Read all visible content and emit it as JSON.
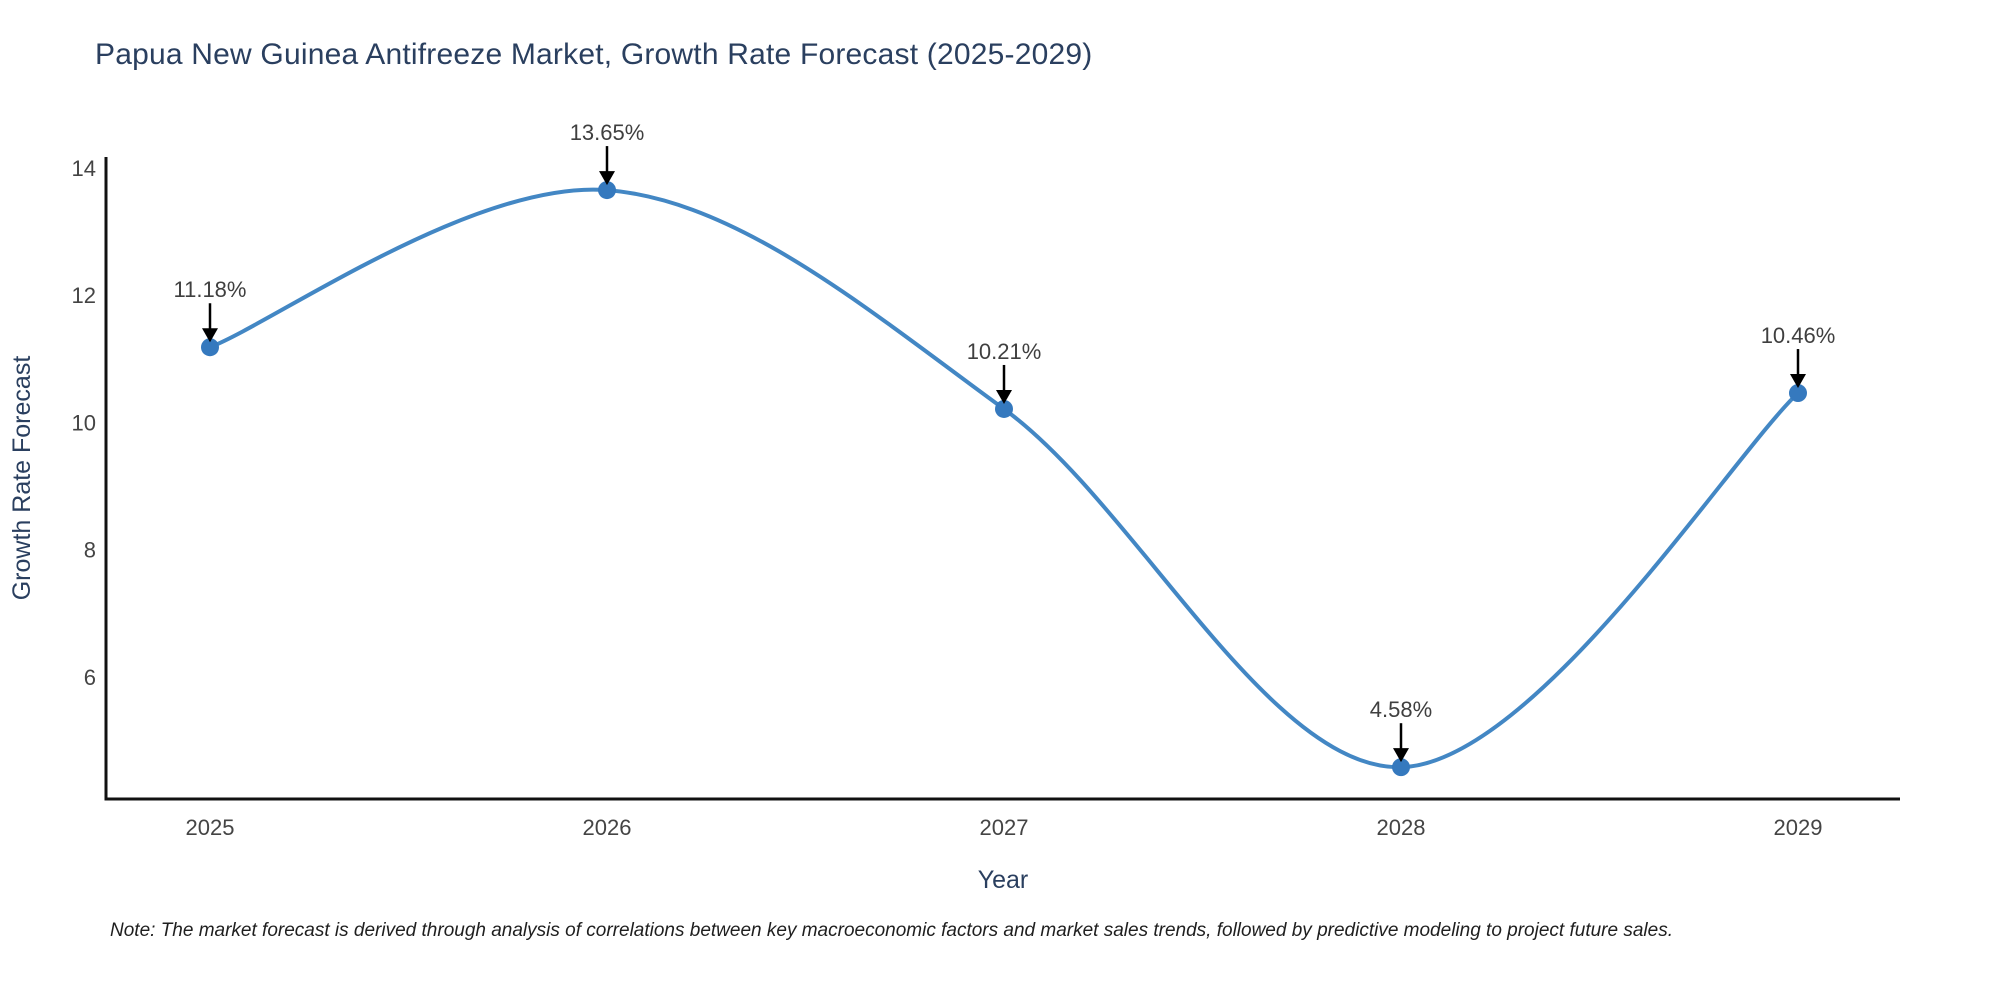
{
  "title": "Papua New Guinea Antifreeze Market, Growth Rate Forecast (2025-2029)",
  "note": "Note: The market forecast is derived through analysis of correlations between key macroeconomic factors and market sales trends, followed by predictive modeling to project future sales.",
  "chart_data": {
    "type": "line",
    "line_shape": "spline",
    "title": "Papua New Guinea Antifreeze Market, Growth Rate Forecast (2025-2029)",
    "xlabel": "Year",
    "ylabel": "Growth Rate Forecast",
    "x": [
      2025,
      2026,
      2027,
      2028,
      2029
    ],
    "xticks": [
      "2025",
      "2026",
      "2027",
      "2028",
      "2029"
    ],
    "yticks": [
      6,
      8,
      10,
      12,
      14
    ],
    "ylim": [
      4.08,
      14.17
    ],
    "grid": false,
    "legend": "none",
    "series": [
      {
        "name": "Growth Rate Forecast",
        "values": [
          11.18,
          13.65,
          10.21,
          4.58,
          10.46
        ],
        "point_labels": [
          "11.18%",
          "13.65%",
          "10.21%",
          "4.58%",
          "10.46%"
        ]
      }
    ],
    "colors": {
      "line": "#4387c4",
      "marker": "#3579be",
      "axis": "#111111",
      "title_text": "#2a3f5f",
      "axis_title_text": "#2a3f5f",
      "tick_text": "#444444",
      "annotation_text": "#3f3f3f",
      "arrow": "#000000",
      "background": "#ffffff",
      "note_text": "#1f1f1f"
    }
  }
}
